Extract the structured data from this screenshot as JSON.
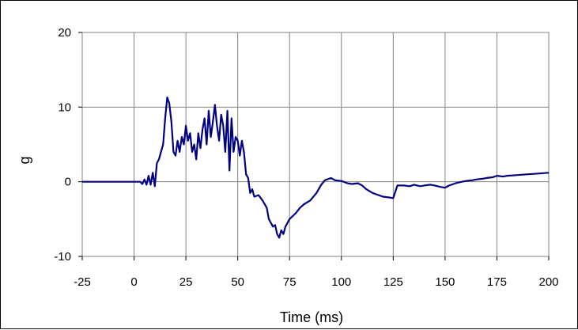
{
  "chart_data": {
    "type": "line",
    "title": "",
    "xlabel": "Time (ms)",
    "ylabel": "g",
    "xlim": [
      -25,
      200
    ],
    "ylim": [
      -10,
      20
    ],
    "xticks": [
      -25,
      0,
      25,
      50,
      75,
      100,
      125,
      150,
      175,
      200
    ],
    "yticks": [
      -10,
      0,
      10,
      20
    ],
    "xtick_labels": [
      "-25",
      "0",
      "25",
      "50",
      "75",
      "100",
      "125",
      "150",
      "175",
      "200"
    ],
    "ytick_labels": [
      "-10",
      "0",
      "10",
      "20"
    ],
    "grid": true,
    "legend": "none",
    "series": [
      {
        "color": "#000080",
        "x": [
          -25,
          -15,
          -5,
          0,
          3,
          4,
          5,
          6,
          7,
          8,
          9,
          10,
          11,
          12,
          13,
          14,
          15,
          16,
          17,
          18,
          19,
          20,
          21,
          22,
          23,
          24,
          25,
          26,
          27,
          28,
          29,
          30,
          31,
          32,
          33,
          34,
          35,
          36,
          37,
          38,
          39,
          40,
          41,
          42,
          43,
          44,
          45,
          46,
          47,
          48,
          49,
          50,
          51,
          52,
          53,
          54,
          55,
          56,
          57,
          58,
          60,
          62,
          64,
          65,
          66,
          67,
          68,
          69,
          70,
          71,
          72,
          73,
          75,
          78,
          80,
          82,
          85,
          88,
          90,
          92,
          95,
          97,
          100,
          103,
          105,
          108,
          110,
          112,
          115,
          118,
          120,
          123,
          125,
          127,
          130,
          133,
          135,
          138,
          140,
          143,
          145,
          148,
          150,
          152,
          155,
          158,
          160,
          163,
          165,
          168,
          170,
          173,
          175,
          178,
          180,
          185,
          190,
          195,
          200
        ],
        "y": [
          0,
          0,
          0,
          0,
          0,
          -0.3,
          0.3,
          -0.4,
          0.8,
          -0.4,
          1.2,
          -0.6,
          2.5,
          3.0,
          4.0,
          5.0,
          8.5,
          11.3,
          10.5,
          8.0,
          4.0,
          3.5,
          5.5,
          4.0,
          6.0,
          5.0,
          7.5,
          5.5,
          6.5,
          4.0,
          5.0,
          3.0,
          6.5,
          4.5,
          7.0,
          8.5,
          5.0,
          9.5,
          6.0,
          8.0,
          10.3,
          7.5,
          5.5,
          9.0,
          7.5,
          4.0,
          9.5,
          1.5,
          8.5,
          4.0,
          6.0,
          5.5,
          3.5,
          5.5,
          4.0,
          1.0,
          0.5,
          -1.5,
          -1.0,
          -2.0,
          -1.8,
          -2.5,
          -3.5,
          -5.0,
          -5.5,
          -6.0,
          -5.8,
          -7.0,
          -7.5,
          -6.5,
          -7.0,
          -6.0,
          -5.0,
          -4.2,
          -3.5,
          -3.0,
          -2.5,
          -1.5,
          -0.5,
          0.2,
          0.5,
          0.2,
          0.1,
          -0.2,
          -0.3,
          -0.2,
          -0.5,
          -1.0,
          -1.5,
          -1.8,
          -2.0,
          -2.1,
          -2.2,
          -0.5,
          -0.5,
          -0.6,
          -0.4,
          -0.6,
          -0.5,
          -0.4,
          -0.5,
          -0.7,
          -0.8,
          -0.5,
          -0.2,
          0.0,
          0.1,
          0.2,
          0.3,
          0.4,
          0.5,
          0.6,
          0.8,
          0.7,
          0.8,
          0.9,
          1.0,
          1.1,
          1.2
        ]
      }
    ]
  }
}
